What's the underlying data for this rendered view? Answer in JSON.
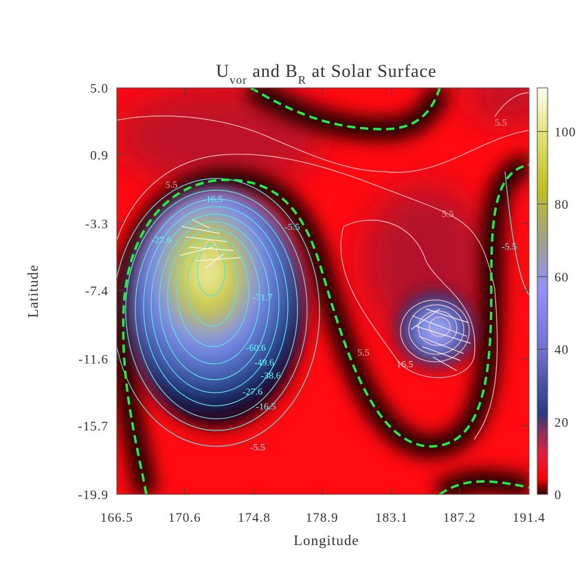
{
  "chart_data": {
    "type": "contour",
    "title": [
      {
        "text": "U"
      },
      {
        "text": "vor",
        "sub": true
      },
      {
        "text": " and B"
      },
      {
        "text": "R",
        "sub": true
      },
      {
        "text": " at Solar Surface"
      }
    ],
    "x_label": "Longitude",
    "y_label": "Latitude",
    "xlim": [
      166.5,
      191.4
    ],
    "xticks": [
      166.5,
      170.6,
      174.8,
      178.9,
      183.1,
      187.2,
      191.4
    ],
    "ylim": [
      -19.9,
      5.0
    ],
    "yticks": [
      {
        "value": 5.0,
        "label": "5.0"
      },
      0.9,
      -3.3,
      -7.4,
      -11.6,
      -15.7,
      -19.9
    ],
    "colorbar_lim": [
      0,
      112
    ],
    "colorbar_ticks": [
      0,
      20,
      40,
      60,
      80,
      100
    ],
    "contour_labels": [
      {
        "lon": 189.7,
        "lat": 2.9,
        "text": "5.5",
        "color": "#ffb0b0"
      },
      {
        "lon": 169.8,
        "lat": -0.9,
        "text": "5.5",
        "color": "#ffb0b0"
      },
      {
        "lon": 186.5,
        "lat": -2.7,
        "text": "5.5",
        "color": "#ffb0b0"
      },
      {
        "lon": 181.4,
        "lat": -11.2,
        "text": "5.5",
        "color": "#ffb0b0"
      },
      {
        "lon": 183.9,
        "lat": -11.9,
        "text": "16.5",
        "color": "#ffd0d0"
      },
      {
        "lon": 172.3,
        "lat": -1.8,
        "text": "-16.5",
        "color": "#60ffff"
      },
      {
        "lon": 177.1,
        "lat": -3.5,
        "text": "-5.5",
        "color": "#60ffff"
      },
      {
        "lon": 169.2,
        "lat": -4.3,
        "text": "-27.6",
        "color": "#60ffff"
      },
      {
        "lon": 190.2,
        "lat": -4.7,
        "text": "-5.5",
        "color": "#60ffff"
      },
      {
        "lon": 175.3,
        "lat": -7.8,
        "text": "-71.7",
        "color": "#60ffff"
      },
      {
        "lon": 174.9,
        "lat": -10.9,
        "text": "-60.6",
        "color": "#60ffff"
      },
      {
        "lon": 175.4,
        "lat": -11.8,
        "text": "-49.6",
        "color": "#60ffff"
      },
      {
        "lon": 175.8,
        "lat": -12.6,
        "text": "-38.6",
        "color": "#60ffff"
      },
      {
        "lon": 174.7,
        "lat": -13.6,
        "text": "-27.6",
        "color": "#60ffff"
      },
      {
        "lon": 175.5,
        "lat": -14.5,
        "text": "-16.5",
        "color": "#60ffff"
      },
      {
        "lon": 175.0,
        "lat": -17.0,
        "text": "-5.5",
        "color": "#60ffff"
      }
    ]
  }
}
